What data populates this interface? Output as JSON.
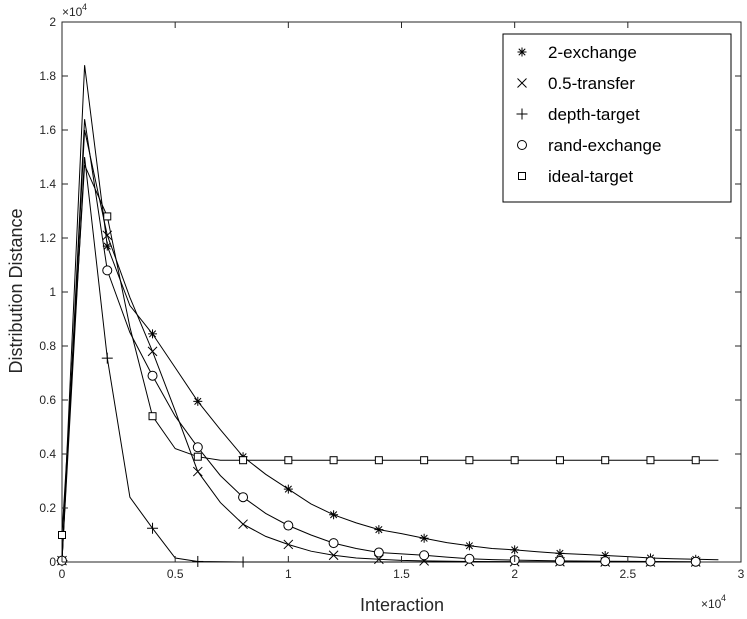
{
  "chart_data": {
    "type": "line",
    "xlabel": "Interaction",
    "ylabel": "Distribution Distance",
    "x_multiplier_base": "×10",
    "x_multiplier_exp": "4",
    "y_multiplier_base": "×10",
    "y_multiplier_exp": "4",
    "xlim": [
      0,
      3
    ],
    "ylim": [
      0,
      2
    ],
    "x_ticks": [
      {
        "value": 0,
        "label": "0"
      },
      {
        "value": 0.5,
        "label": "0.5"
      },
      {
        "value": 1,
        "label": "1"
      },
      {
        "value": 1.5,
        "label": "1.5"
      },
      {
        "value": 2,
        "label": "2"
      },
      {
        "value": 2.5,
        "label": "2.5"
      },
      {
        "value": 3,
        "label": "3"
      }
    ],
    "y_ticks": [
      {
        "value": 0,
        "label": "0"
      },
      {
        "value": 0.2,
        "label": "0.2"
      },
      {
        "value": 0.4,
        "label": "0.4"
      },
      {
        "value": 0.6,
        "label": "0.6"
      },
      {
        "value": 0.8,
        "label": "0.8"
      },
      {
        "value": 1,
        "label": "1"
      },
      {
        "value": 1.2,
        "label": "1.2"
      },
      {
        "value": 1.4,
        "label": "1.4"
      },
      {
        "value": 1.6,
        "label": "1.6"
      },
      {
        "value": 1.8,
        "label": "1.8"
      },
      {
        "value": 2,
        "label": "2"
      }
    ],
    "legend_position": "top-right",
    "grid": false,
    "series": [
      {
        "name": "2-exchange",
        "marker": "asterisk",
        "line": [
          [
            0,
            0.005
          ],
          [
            0.1,
            1.84
          ],
          [
            0.2,
            1.17
          ],
          [
            0.3,
            0.95
          ],
          [
            0.4,
            0.845
          ],
          [
            0.5,
            0.72
          ],
          [
            0.6,
            0.595
          ],
          [
            0.7,
            0.49
          ],
          [
            0.8,
            0.39
          ],
          [
            0.9,
            0.325
          ],
          [
            1.0,
            0.27
          ],
          [
            1.1,
            0.215
          ],
          [
            1.2,
            0.175
          ],
          [
            1.3,
            0.145
          ],
          [
            1.4,
            0.12
          ],
          [
            1.5,
            0.105
          ],
          [
            1.6,
            0.088
          ],
          [
            1.7,
            0.072
          ],
          [
            1.8,
            0.06
          ],
          [
            1.9,
            0.05
          ],
          [
            2.0,
            0.045
          ],
          [
            2.1,
            0.038
          ],
          [
            2.2,
            0.032
          ],
          [
            2.3,
            0.028
          ],
          [
            2.4,
            0.024
          ],
          [
            2.5,
            0.02
          ],
          [
            2.6,
            0.015
          ],
          [
            2.7,
            0.012
          ],
          [
            2.8,
            0.01
          ],
          [
            2.9,
            0.008
          ]
        ],
        "markers": [
          [
            0,
            0.005
          ],
          [
            0.2,
            1.17
          ],
          [
            0.4,
            0.845
          ],
          [
            0.6,
            0.595
          ],
          [
            0.8,
            0.39
          ],
          [
            1.0,
            0.27
          ],
          [
            1.2,
            0.175
          ],
          [
            1.4,
            0.12
          ],
          [
            1.6,
            0.088
          ],
          [
            1.8,
            0.06
          ],
          [
            2.0,
            0.045
          ],
          [
            2.2,
            0.032
          ],
          [
            2.4,
            0.024
          ],
          [
            2.6,
            0.015
          ],
          [
            2.8,
            0.01
          ]
        ]
      },
      {
        "name": "0.5-transfer",
        "marker": "x",
        "line": [
          [
            0,
            0.005
          ],
          [
            0.1,
            1.6
          ],
          [
            0.2,
            1.21
          ],
          [
            0.3,
            0.98
          ],
          [
            0.4,
            0.78
          ],
          [
            0.5,
            0.56
          ],
          [
            0.6,
            0.335
          ],
          [
            0.7,
            0.22
          ],
          [
            0.8,
            0.14
          ],
          [
            0.9,
            0.095
          ],
          [
            1.0,
            0.065
          ],
          [
            1.1,
            0.04
          ],
          [
            1.2,
            0.025
          ],
          [
            1.3,
            0.015
          ],
          [
            1.4,
            0.01
          ],
          [
            1.5,
            0.006
          ],
          [
            1.6,
            0.004
          ],
          [
            1.8,
            0.002
          ],
          [
            2.0,
            0.001
          ],
          [
            2.2,
            0.001
          ],
          [
            2.4,
            0
          ],
          [
            2.6,
            0
          ],
          [
            2.8,
            0
          ]
        ],
        "markers": [
          [
            0,
            0.005
          ],
          [
            0.2,
            1.21
          ],
          [
            0.4,
            0.78
          ],
          [
            0.6,
            0.335
          ],
          [
            0.8,
            0.14
          ],
          [
            1.0,
            0.065
          ],
          [
            1.2,
            0.025
          ],
          [
            1.4,
            0.01
          ],
          [
            1.6,
            0.004
          ],
          [
            1.8,
            0.002
          ],
          [
            2.0,
            0.001
          ],
          [
            2.2,
            0.001
          ],
          [
            2.4,
            0
          ],
          [
            2.6,
            0
          ],
          [
            2.8,
            0
          ]
        ]
      },
      {
        "name": "depth-target",
        "marker": "plus",
        "line": [
          [
            0,
            0.005
          ],
          [
            0.1,
            1.5
          ],
          [
            0.2,
            0.755
          ],
          [
            0.3,
            0.24
          ],
          [
            0.4,
            0.125
          ],
          [
            0.5,
            0.015
          ],
          [
            0.6,
            0.002
          ],
          [
            0.8,
            0
          ],
          [
            1.0,
            0
          ],
          [
            2.0,
            0
          ],
          [
            2.8,
            0
          ]
        ],
        "markers": [
          [
            0,
            0.005
          ],
          [
            0.2,
            0.755
          ],
          [
            0.4,
            0.125
          ],
          [
            0.6,
            0.002
          ],
          [
            0.8,
            0
          ]
        ]
      },
      {
        "name": "rand-exchange",
        "marker": "circle",
        "line": [
          [
            0,
            0.005
          ],
          [
            0.1,
            1.64
          ],
          [
            0.2,
            1.08
          ],
          [
            0.3,
            0.85
          ],
          [
            0.4,
            0.69
          ],
          [
            0.5,
            0.54
          ],
          [
            0.6,
            0.425
          ],
          [
            0.7,
            0.32
          ],
          [
            0.8,
            0.24
          ],
          [
            0.9,
            0.18
          ],
          [
            1.0,
            0.135
          ],
          [
            1.1,
            0.1
          ],
          [
            1.2,
            0.07
          ],
          [
            1.3,
            0.05
          ],
          [
            1.4,
            0.035
          ],
          [
            1.5,
            0.03
          ],
          [
            1.6,
            0.025
          ],
          [
            1.7,
            0.018
          ],
          [
            1.8,
            0.012
          ],
          [
            1.9,
            0.009
          ],
          [
            2.0,
            0.007
          ],
          [
            2.2,
            0.004
          ],
          [
            2.4,
            0.003
          ],
          [
            2.6,
            0.002
          ],
          [
            2.8,
            0.001
          ]
        ],
        "markers": [
          [
            0,
            0.005
          ],
          [
            0.2,
            1.08
          ],
          [
            0.4,
            0.69
          ],
          [
            0.6,
            0.425
          ],
          [
            0.8,
            0.24
          ],
          [
            1.0,
            0.135
          ],
          [
            1.2,
            0.07
          ],
          [
            1.4,
            0.035
          ],
          [
            1.6,
            0.025
          ],
          [
            1.8,
            0.012
          ],
          [
            2.0,
            0.007
          ],
          [
            2.2,
            0.004
          ],
          [
            2.4,
            0.003
          ],
          [
            2.6,
            0.002
          ],
          [
            2.8,
            0.001
          ]
        ]
      },
      {
        "name": "ideal-target",
        "marker": "square",
        "line": [
          [
            0,
            0.1
          ],
          [
            0.1,
            1.47
          ],
          [
            0.2,
            1.28
          ],
          [
            0.3,
            0.87
          ],
          [
            0.4,
            0.54
          ],
          [
            0.5,
            0.42
          ],
          [
            0.6,
            0.39
          ],
          [
            0.7,
            0.377
          ],
          [
            0.8,
            0.377
          ],
          [
            1.0,
            0.377
          ],
          [
            2.9,
            0.377
          ]
        ],
        "markers": [
          [
            0,
            0.1
          ],
          [
            0.2,
            1.28
          ],
          [
            0.4,
            0.54
          ],
          [
            0.6,
            0.39
          ],
          [
            0.8,
            0.377
          ],
          [
            1.0,
            0.377
          ],
          [
            1.2,
            0.377
          ],
          [
            1.4,
            0.377
          ],
          [
            1.6,
            0.377
          ],
          [
            1.8,
            0.377
          ],
          [
            2.0,
            0.377
          ],
          [
            2.2,
            0.377
          ],
          [
            2.4,
            0.377
          ],
          [
            2.6,
            0.377
          ],
          [
            2.8,
            0.377
          ]
        ]
      }
    ]
  }
}
